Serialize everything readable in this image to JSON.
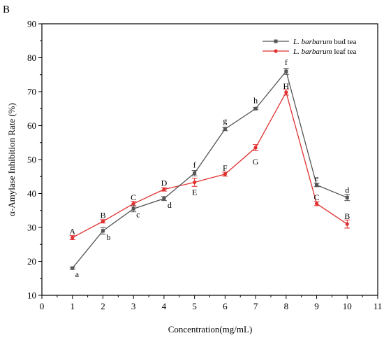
{
  "panel_label": "B",
  "chart_data": {
    "type": "line",
    "xlabel": "Concentration(mg/mL)",
    "ylabel": "α-Amylase Inhibition Rate (%)",
    "xlim": [
      0,
      11
    ],
    "ylim": [
      10,
      90
    ],
    "xticks": [
      0,
      1,
      2,
      3,
      4,
      5,
      6,
      7,
      8,
      9,
      10,
      11
    ],
    "yticks": [
      10,
      20,
      30,
      40,
      50,
      60,
      70,
      80,
      90
    ],
    "grid": false,
    "legend_position": "top-right",
    "series": [
      {
        "name": "L. barbarum bud tea",
        "name_italic": "L. barbarum",
        "name_rest": " bud tea",
        "color": "#555555",
        "x": [
          1,
          2,
          3,
          4,
          5,
          6,
          7,
          8,
          9,
          10
        ],
        "y": [
          18.0,
          29.0,
          35.5,
          38.5,
          46.0,
          59.0,
          65.0,
          76.0,
          42.5,
          38.8
        ],
        "err": [
          0.3,
          1.0,
          0.9,
          0.6,
          0.8,
          0.5,
          0.3,
          0.9,
          0.5,
          0.9
        ],
        "labels": [
          "a",
          "b",
          "c",
          "d",
          "f",
          "g",
          "h",
          "f",
          "e",
          "d"
        ]
      },
      {
        "name": "L. barbarum leaf tea",
        "name_italic": "L. barbarum",
        "name_rest": " leaf tea",
        "color": "#e03030",
        "x": [
          1,
          2,
          3,
          4,
          5,
          6,
          7,
          8,
          9,
          10
        ],
        "y": [
          27.0,
          31.8,
          37.0,
          41.2,
          43.3,
          45.7,
          53.5,
          69.8,
          37.0,
          31.0
        ],
        "err": [
          0.6,
          0.5,
          0.7,
          0.5,
          1.2,
          0.6,
          0.9,
          0.8,
          0.6,
          1.2
        ],
        "labels": [
          "A",
          "B",
          "C",
          "D",
          "E",
          "F",
          "G",
          "H",
          "C",
          "B"
        ]
      }
    ]
  }
}
